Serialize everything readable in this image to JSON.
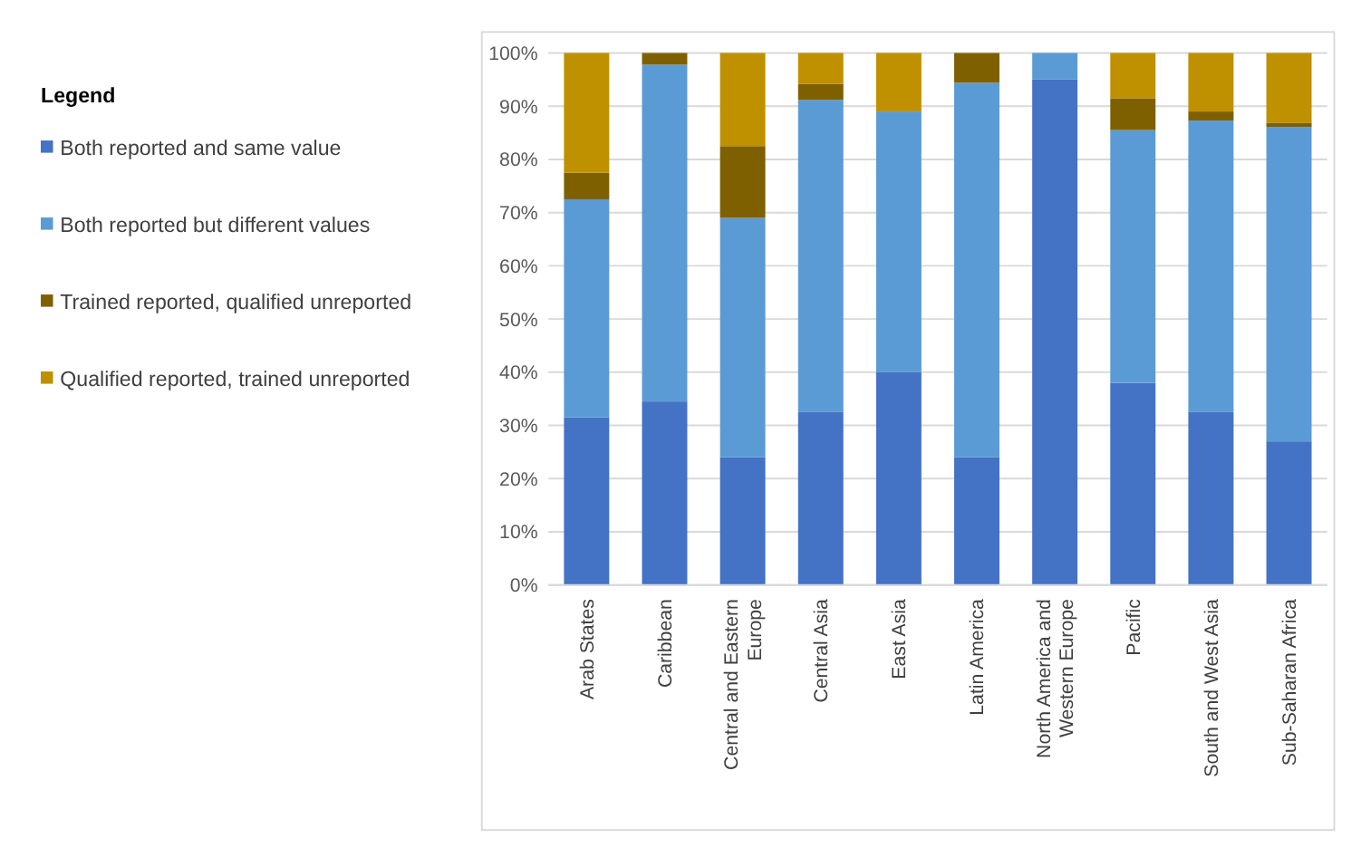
{
  "chart_data": {
    "type": "bar",
    "stacked": true,
    "legend_title": "Legend",
    "legend": "left",
    "grid": "y",
    "categories": [
      "Arab States",
      "Caribbean",
      "Central and Eastern Europe",
      "Central Asia",
      "East Asia",
      "Latin America",
      "North America and Western Europe",
      "Pacific",
      "South and West Asia",
      "Sub-Saharan Africa"
    ],
    "series": [
      {
        "name": "Both reported and same value",
        "color": "#4472c4",
        "values": [
          31.5,
          34.5,
          24,
          32.5,
          40,
          24,
          95,
          38,
          32.5,
          27
        ]
      },
      {
        "name": "Both reported but different values",
        "color": "#5b9bd5",
        "values": [
          41,
          63.3,
          45,
          58.7,
          49,
          70.4,
          5,
          47.5,
          54.8,
          59.1
        ]
      },
      {
        "name": "Trained reported, qualified unreported",
        "color": "#7f6000",
        "values": [
          5,
          2.2,
          13.5,
          3,
          0,
          5.6,
          0,
          6,
          1.7,
          0.8
        ]
      },
      {
        "name": "Qualified reported, trained unreported",
        "color": "#bf9000",
        "values": [
          22.5,
          0,
          17.5,
          5.8,
          11,
          0,
          0,
          8.5,
          11,
          13.1
        ]
      }
    ],
    "ylim": [
      0,
      100
    ],
    "yticks": [
      {
        "value": 0,
        "label": "0%"
      },
      {
        "value": 10,
        "label": "10%"
      },
      {
        "value": 20,
        "label": "20%"
      },
      {
        "value": 30,
        "label": "30%"
      },
      {
        "value": 40,
        "label": "40%"
      },
      {
        "value": 50,
        "label": "50%"
      },
      {
        "value": 60,
        "label": "60%"
      },
      {
        "value": 70,
        "label": "70%"
      },
      {
        "value": 80,
        "label": "80%"
      },
      {
        "value": 90,
        "label": "90%"
      },
      {
        "value": 100,
        "label": "100%"
      }
    ]
  }
}
